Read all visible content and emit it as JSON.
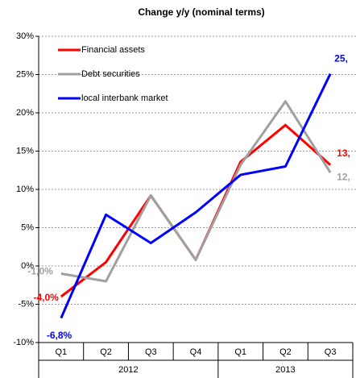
{
  "chart_data": {
    "type": "line",
    "title": "Change y/y (nominal terms)",
    "categories": [
      "Q1",
      "Q2",
      "Q3",
      "Q4",
      "Q1",
      "Q2",
      "Q3"
    ],
    "years": [
      "2012",
      "2012",
      "2012",
      "2012",
      "2013",
      "2013",
      "2013"
    ],
    "series": [
      {
        "name": "Financial assets",
        "color": "#ff0000",
        "values": [
          -4.0,
          0.5,
          9.2,
          0.8,
          13.6,
          18.4,
          13.2
        ],
        "value_labels": [
          "-4,0%",
          null,
          null,
          null,
          null,
          null,
          "13,"
        ]
      },
      {
        "name": "Debt securities",
        "color": "#a0a0a0",
        "values": [
          -1.0,
          -2.0,
          9.2,
          0.8,
          13.2,
          21.5,
          12.2
        ],
        "value_labels": [
          "-1,0%",
          null,
          null,
          null,
          null,
          null,
          "12,"
        ]
      },
      {
        "name": "local interbank market",
        "color": "#0000ff",
        "values": [
          -6.8,
          6.7,
          3.0,
          7.0,
          11.9,
          13.0,
          25.1
        ],
        "value_labels": [
          "-6,8%",
          null,
          null,
          null,
          null,
          null,
          "25,"
        ]
      }
    ],
    "ylim": [
      -10,
      30
    ],
    "yticks": [
      {
        "value": -10,
        "label": "-10%"
      },
      {
        "value": -5,
        "label": "-5%"
      },
      {
        "value": 0,
        "label": "0%"
      },
      {
        "value": 5,
        "label": "5%"
      },
      {
        "value": 10,
        "label": "10%"
      },
      {
        "value": 15,
        "label": "15%"
      },
      {
        "value": 20,
        "label": "20%"
      },
      {
        "value": 25,
        "label": "25%"
      },
      {
        "value": 30,
        "label": "30%"
      }
    ],
    "grid": true,
    "legend": "upper left"
  }
}
